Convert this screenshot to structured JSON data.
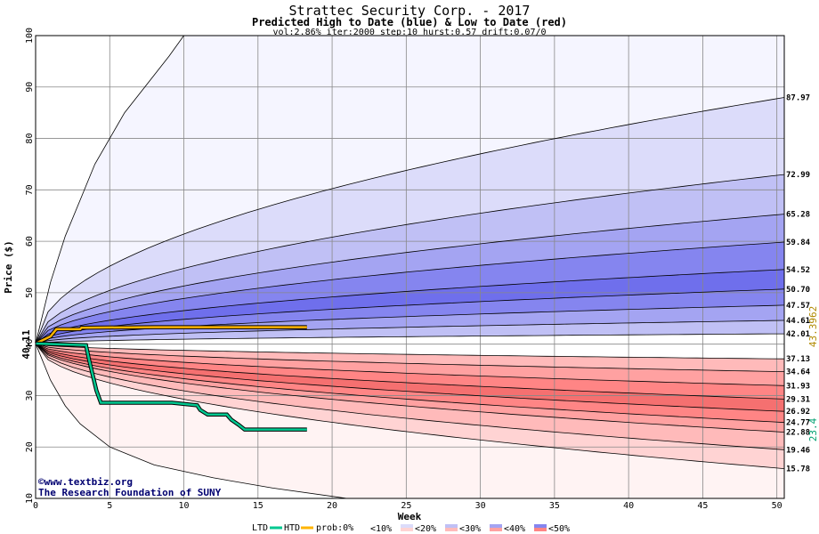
{
  "chart_data": {
    "type": "area",
    "title": "Strattec Security Corp. - 2017",
    "subtitle": "Predicted High to Date (blue) &  Low to Date (red)",
    "params": "vol:2.86% iter:2000 step:10 hurst:0.57 drift:0.07/0",
    "xlabel": "Week",
    "ylabel": "Price ($)",
    "xlim": [
      0,
      50.5
    ],
    "ylim": [
      10,
      100
    ],
    "x_ticks": [
      0,
      5,
      10,
      15,
      20,
      25,
      30,
      35,
      40,
      45,
      50
    ],
    "y_ticks": [
      10,
      20,
      30,
      40,
      50,
      60,
      70,
      80,
      90,
      100
    ],
    "grid": true,
    "start_price": 40.11,
    "start_label": "40.11",
    "high_envelope": [
      {
        "x": 0,
        "y": 40.11
      },
      {
        "x": 1,
        "y": 52
      },
      {
        "x": 2,
        "y": 61
      },
      {
        "x": 3,
        "y": 68
      },
      {
        "x": 4,
        "y": 75
      },
      {
        "x": 6,
        "y": 85
      },
      {
        "x": 9,
        "y": 96
      },
      {
        "x": 10,
        "y": 100
      }
    ],
    "low_envelope": [
      {
        "x": 0,
        "y": 40.11
      },
      {
        "x": 1,
        "y": 33
      },
      {
        "x": 2,
        "y": 28
      },
      {
        "x": 3,
        "y": 24.5
      },
      {
        "x": 5,
        "y": 20
      },
      {
        "x": 8,
        "y": 16.5
      },
      {
        "x": 12,
        "y": 14
      },
      {
        "x": 16,
        "y": 12
      },
      {
        "x": 21,
        "y": 10
      }
    ],
    "high_percentiles": [
      {
        "label": "87.97",
        "end": 87.97,
        "band": "<10%"
      },
      {
        "label": "72.99",
        "end": 72.99,
        "band": "<20%"
      },
      {
        "label": "65.28",
        "end": 65.28,
        "band": "<30%"
      },
      {
        "label": "59.84",
        "end": 59.84,
        "band": "<40%"
      },
      {
        "label": "54.52",
        "end": 54.52,
        "band": "<50%"
      },
      {
        "label": "50.70",
        "end": 50.7,
        "band": "<50%"
      },
      {
        "label": "47.57",
        "end": 47.57,
        "band": "<40%"
      },
      {
        "label": "44.61",
        "end": 44.61,
        "band": "<30%"
      },
      {
        "label": "42.01",
        "end": 42.01,
        "band": "<20%"
      }
    ],
    "low_percentiles": [
      {
        "label": "37.13",
        "end": 37.13,
        "band": "<20%"
      },
      {
        "label": "34.64",
        "end": 34.64,
        "band": "<30%"
      },
      {
        "label": "31.93",
        "end": 31.93,
        "band": "<40%"
      },
      {
        "label": "29.31",
        "end": 29.31,
        "band": "<50%"
      },
      {
        "label": "26.92",
        "end": 26.92,
        "band": "<50%"
      },
      {
        "label": "24.77",
        "end": 24.77,
        "band": "<40%"
      },
      {
        "label": "22.88",
        "end": 22.88,
        "band": "<30%"
      },
      {
        "label": "19.46",
        "end": 19.46,
        "band": "<20%"
      },
      {
        "label": "15.78",
        "end": 15.78,
        "band": "<10%"
      }
    ],
    "htd_series": {
      "name": "HTD",
      "color": "#ffb400",
      "points": [
        {
          "x": 0,
          "y": 40.11
        },
        {
          "x": 1,
          "y": 41.5
        },
        {
          "x": 1.4,
          "y": 42.9
        },
        {
          "x": 3,
          "y": 42.9
        },
        {
          "x": 3.1,
          "y": 43.2
        },
        {
          "x": 8,
          "y": 43.3
        },
        {
          "x": 18.3,
          "y": 43.3
        }
      ],
      "end_label": "43.3962"
    },
    "ltd_series": {
      "name": "LTD",
      "color": "#00c890",
      "points": [
        {
          "x": 0,
          "y": 40.11
        },
        {
          "x": 3.4,
          "y": 39.8
        },
        {
          "x": 3.6,
          "y": 37
        },
        {
          "x": 4.1,
          "y": 31
        },
        {
          "x": 4.4,
          "y": 28.6
        },
        {
          "x": 9.2,
          "y": 28.6
        },
        {
          "x": 10.9,
          "y": 28.1
        },
        {
          "x": 11.1,
          "y": 27.2
        },
        {
          "x": 11.6,
          "y": 26.3
        },
        {
          "x": 12.9,
          "y": 26.3
        },
        {
          "x": 13.2,
          "y": 25.3
        },
        {
          "x": 13.7,
          "y": 24.3
        },
        {
          "x": 14.1,
          "y": 23.4
        },
        {
          "x": 18.3,
          "y": 23.4
        }
      ],
      "end_label": "23.4"
    },
    "legend": {
      "ltd": "LTD",
      "htd": "HTD",
      "prob": "prob:0%",
      "bands": [
        "<10%",
        "<20%",
        "<30%",
        "<40%",
        "<50%"
      ]
    },
    "band_colors": {
      "high": [
        "#f5f5ff",
        "#dcdcfa",
        "#c0c0f5",
        "#a4a4f2",
        "#8585ef",
        "#6f6fec"
      ],
      "low": [
        "#fff3f3",
        "#ffd3d3",
        "#ffbaba",
        "#ffa1a1",
        "#ff8585",
        "#f57070"
      ]
    },
    "credit": [
      "©www.textbiz.org",
      "The Research Foundation of SUNY"
    ]
  }
}
